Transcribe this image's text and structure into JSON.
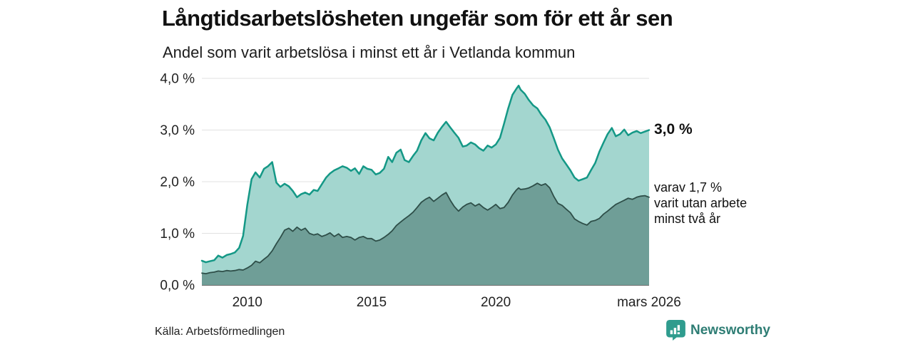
{
  "header": {
    "title": "Långtidsarbetslösheten ungefär som för ett år sen",
    "subtitle": "Andel som varit arbetslösa i minst ett år i Vetlanda kommun"
  },
  "annotations": {
    "total_end_label": "3,0 %",
    "two_year_label_line1": "varav 1,7 %",
    "two_year_label_line2": "varit utan arbete",
    "two_year_label_line3": "minst två år"
  },
  "footer": {
    "source": "Källa: Arbetsförmedlingen",
    "brand": "Newsworthy"
  },
  "colors": {
    "total_line": "#149886",
    "total_fill": "#a3d6cf",
    "two_year_line": "#2e4e48",
    "two_year_fill": "#6f9e97",
    "gridline": "#e2e2e2",
    "baseline": "#3f3f3f",
    "brand_teal": "#2e7d74",
    "brand_icon": "#2f9c8e"
  },
  "chart_data": {
    "type": "area",
    "title": "Långtidsarbetslösheten ungefär som för ett år sen",
    "subtitle": "Andel som varit arbetslösa i minst ett år i Vetlanda kommun",
    "ylabel": "",
    "xlabel": "",
    "ylim": [
      0,
      4
    ],
    "xrange": [
      2008.17,
      2026.17
    ],
    "grid": "horizontal",
    "legend_position": "right-annotations",
    "yticks": [
      {
        "value": 0,
        "label": "0,0 %"
      },
      {
        "value": 1,
        "label": "1,0 %"
      },
      {
        "value": 2,
        "label": "2,0 %"
      },
      {
        "value": 3,
        "label": "3,0 %"
      },
      {
        "value": 4,
        "label": "4,0 %"
      }
    ],
    "xticks": [
      {
        "x": 2010,
        "label": "2010"
      },
      {
        "x": 2015,
        "label": "2015"
      },
      {
        "x": 2020,
        "label": "2020"
      },
      {
        "x": 2026.17,
        "label": "mars 2026"
      }
    ],
    "x": [
      2008.17,
      2008.33,
      2008.5,
      2008.67,
      2008.83,
      2009.0,
      2009.17,
      2009.33,
      2009.5,
      2009.67,
      2009.83,
      2010.0,
      2010.17,
      2010.33,
      2010.5,
      2010.67,
      2010.83,
      2011.0,
      2011.17,
      2011.33,
      2011.5,
      2011.67,
      2011.83,
      2012.0,
      2012.17,
      2012.33,
      2012.5,
      2012.67,
      2012.83,
      2013.0,
      2013.17,
      2013.33,
      2013.5,
      2013.67,
      2013.83,
      2014.0,
      2014.17,
      2014.33,
      2014.5,
      2014.67,
      2014.83,
      2015.0,
      2015.17,
      2015.33,
      2015.5,
      2015.67,
      2015.83,
      2016.0,
      2016.17,
      2016.33,
      2016.5,
      2016.67,
      2016.83,
      2017.0,
      2017.17,
      2017.33,
      2017.5,
      2017.67,
      2017.83,
      2018.0,
      2018.17,
      2018.33,
      2018.5,
      2018.67,
      2018.83,
      2019.0,
      2019.17,
      2019.33,
      2019.5,
      2019.67,
      2019.83,
      2020.0,
      2020.17,
      2020.33,
      2020.5,
      2020.67,
      2020.83,
      2020.92,
      2021.0,
      2021.17,
      2021.33,
      2021.5,
      2021.67,
      2021.83,
      2022.0,
      2022.17,
      2022.33,
      2022.5,
      2022.67,
      2022.83,
      2023.0,
      2023.17,
      2023.33,
      2023.5,
      2023.67,
      2023.83,
      2024.0,
      2024.17,
      2024.33,
      2024.5,
      2024.67,
      2024.83,
      2025.0,
      2025.17,
      2025.33,
      2025.5,
      2025.67,
      2025.83,
      2026.0,
      2026.17
    ],
    "series": [
      {
        "name": "Arbetslösa minst ett år",
        "end_value": 3.0,
        "end_label": "3,0 %",
        "line_color": "#149886",
        "fill_color": "#a3d6cf",
        "line_width": 2.5,
        "values": [
          0.47,
          0.44,
          0.46,
          0.48,
          0.57,
          0.53,
          0.58,
          0.6,
          0.63,
          0.72,
          0.95,
          1.55,
          2.05,
          2.18,
          2.08,
          2.25,
          2.3,
          2.38,
          1.98,
          1.9,
          1.96,
          1.91,
          1.82,
          1.7,
          1.76,
          1.79,
          1.75,
          1.84,
          1.82,
          1.95,
          2.08,
          2.16,
          2.22,
          2.26,
          2.3,
          2.27,
          2.21,
          2.26,
          2.15,
          2.3,
          2.25,
          2.23,
          2.14,
          2.17,
          2.25,
          2.48,
          2.38,
          2.56,
          2.62,
          2.42,
          2.38,
          2.5,
          2.6,
          2.8,
          2.94,
          2.84,
          2.8,
          2.95,
          3.06,
          3.16,
          3.05,
          2.95,
          2.85,
          2.68,
          2.7,
          2.76,
          2.72,
          2.65,
          2.6,
          2.7,
          2.66,
          2.72,
          2.85,
          3.12,
          3.42,
          3.68,
          3.8,
          3.86,
          3.78,
          3.7,
          3.58,
          3.48,
          3.42,
          3.3,
          3.2,
          3.05,
          2.85,
          2.62,
          2.45,
          2.34,
          2.22,
          2.08,
          2.02,
          2.05,
          2.08,
          2.22,
          2.36,
          2.58,
          2.75,
          2.92,
          3.04,
          2.88,
          2.92,
          3.01,
          2.9,
          2.95,
          2.98,
          2.94,
          2.97,
          3.0
        ]
      },
      {
        "name": "Varav utan arbete minst två år",
        "end_value": 1.7,
        "end_label": "varav 1,7 % varit utan arbete minst två år",
        "line_color": "#2e4e48",
        "fill_color": "#6f9e97",
        "line_width": 1.8,
        "values": [
          0.23,
          0.22,
          0.24,
          0.25,
          0.27,
          0.26,
          0.28,
          0.27,
          0.28,
          0.3,
          0.29,
          0.33,
          0.38,
          0.46,
          0.43,
          0.5,
          0.56,
          0.66,
          0.8,
          0.92,
          1.06,
          1.1,
          1.04,
          1.12,
          1.06,
          1.1,
          1.0,
          0.97,
          0.99,
          0.94,
          0.97,
          1.01,
          0.94,
          0.99,
          0.92,
          0.94,
          0.92,
          0.87,
          0.92,
          0.94,
          0.9,
          0.9,
          0.85,
          0.87,
          0.92,
          0.98,
          1.05,
          1.15,
          1.22,
          1.28,
          1.34,
          1.41,
          1.5,
          1.6,
          1.66,
          1.7,
          1.62,
          1.68,
          1.74,
          1.79,
          1.64,
          1.52,
          1.43,
          1.51,
          1.56,
          1.59,
          1.53,
          1.57,
          1.5,
          1.45,
          1.5,
          1.56,
          1.48,
          1.5,
          1.6,
          1.74,
          1.84,
          1.88,
          1.85,
          1.86,
          1.88,
          1.92,
          1.97,
          1.93,
          1.96,
          1.88,
          1.72,
          1.58,
          1.54,
          1.47,
          1.4,
          1.28,
          1.23,
          1.19,
          1.16,
          1.23,
          1.25,
          1.29,
          1.37,
          1.43,
          1.5,
          1.56,
          1.6,
          1.64,
          1.68,
          1.66,
          1.7,
          1.72,
          1.73,
          1.7
        ]
      }
    ]
  }
}
